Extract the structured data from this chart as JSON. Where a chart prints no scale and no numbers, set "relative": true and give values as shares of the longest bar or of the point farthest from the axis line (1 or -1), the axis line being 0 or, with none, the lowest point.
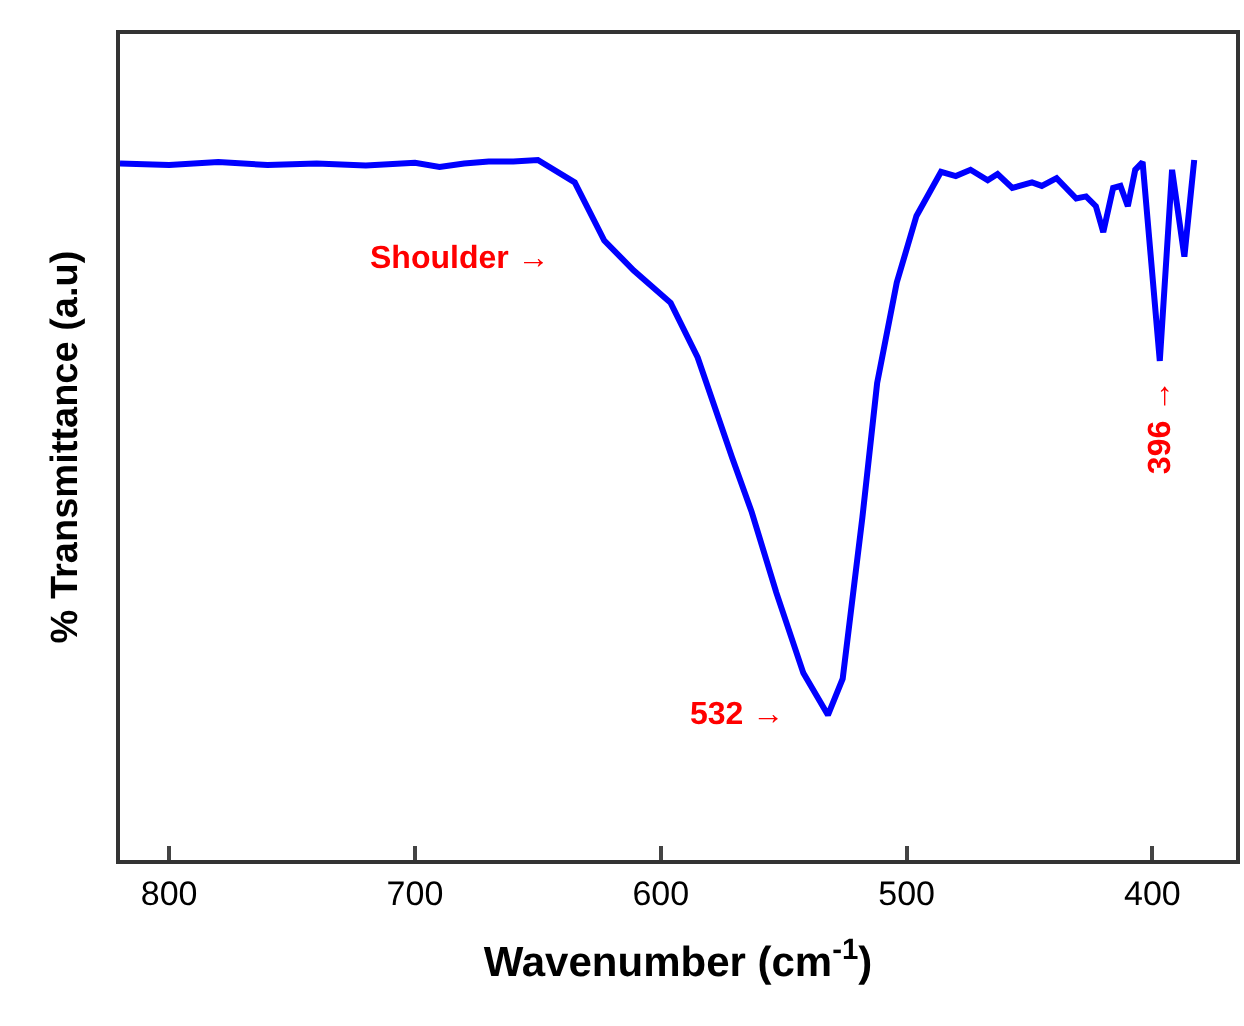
{
  "chart_data": {
    "type": "line",
    "relative": true,
    "xlabel": "Wavenumber (cm$^{-1}$)",
    "ylabel": "% Transmittance (a.u)",
    "x": [
      820,
      800,
      780,
      760,
      740,
      720,
      700,
      690,
      680,
      670,
      660,
      650,
      635,
      623,
      611,
      596,
      585,
      571,
      563,
      553,
      542,
      532,
      526,
      518,
      512,
      504,
      496,
      486,
      480,
      474,
      467,
      463,
      457,
      449,
      445,
      439,
      431,
      427,
      423,
      420,
      416,
      413,
      410,
      407,
      404,
      397,
      392,
      387,
      383
    ],
    "series": [
      {
        "color": "#0000ff",
        "values": [
          0.995,
          0.993,
          0.997,
          0.993,
          0.995,
          0.992,
          0.996,
          0.99,
          0.995,
          0.998,
          0.998,
          1.0,
          0.968,
          0.885,
          0.842,
          0.796,
          0.718,
          0.575,
          0.497,
          0.382,
          0.267,
          0.207,
          0.259,
          0.489,
          0.681,
          0.825,
          0.92,
          0.983,
          0.977,
          0.986,
          0.971,
          0.98,
          0.96,
          0.968,
          0.963,
          0.974,
          0.945,
          0.948,
          0.934,
          0.897,
          0.96,
          0.963,
          0.934,
          0.986,
          0.997,
          0.713,
          0.986,
          0.862,
          1.0
        ]
      }
    ],
    "xlim": [
      820,
      366
    ],
    "xticks": [
      800,
      700,
      600,
      500,
      400
    ],
    "marker": "none",
    "line_style": "solid",
    "annotations": [
      {
        "text": "Shoulder →",
        "x": 611,
        "y": 0.842
      },
      {
        "text": "532 →",
        "x": 532,
        "y": 0.207
      },
      {
        "text": "396 →",
        "x": 396,
        "y": 0.713
      }
    ]
  }
}
